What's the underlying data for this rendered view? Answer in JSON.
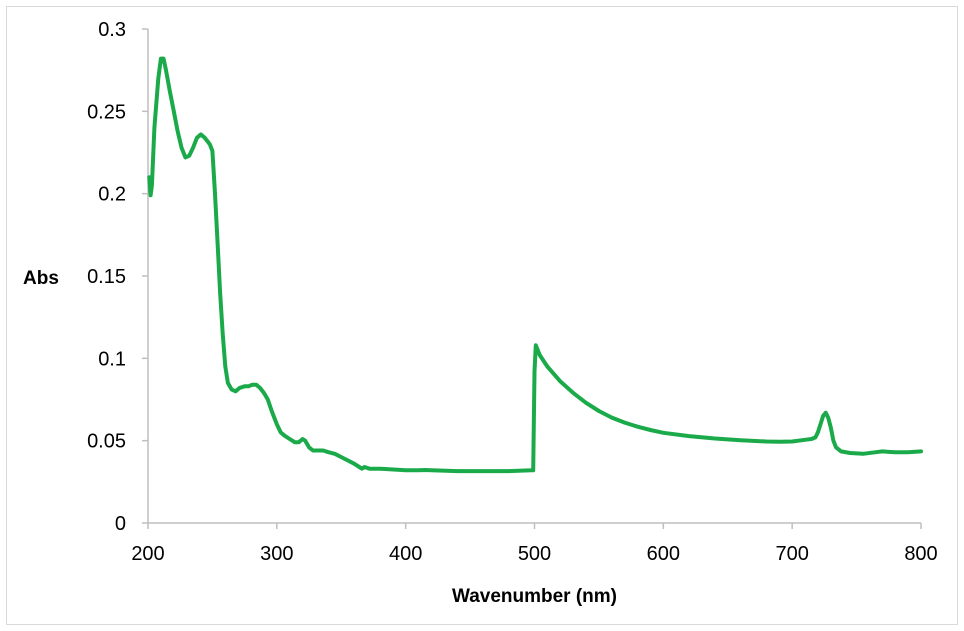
{
  "chart_data": {
    "type": "line",
    "title": "",
    "xlabel": "Wavenumber (nm)",
    "ylabel": "Abs",
    "xlim": [
      200,
      800
    ],
    "ylim": [
      0,
      0.3
    ],
    "x_ticks": [
      200,
      300,
      400,
      500,
      600,
      700,
      800
    ],
    "y_ticks": [
      0,
      0.05,
      0.1,
      0.15,
      0.2,
      0.25,
      0.3
    ],
    "x_tick_labels": [
      "200",
      "300",
      "400",
      "500",
      "600",
      "700",
      "800"
    ],
    "y_tick_labels": [
      "0",
      "0.05",
      "0.1",
      "0.15",
      "0.2",
      "0.25",
      "0.3"
    ],
    "grid": false,
    "legend": "none",
    "series": [
      {
        "color": "#1aaa4a",
        "points": [
          [
            201,
            0.21
          ],
          [
            202,
            0.199
          ],
          [
            203,
            0.205
          ],
          [
            205,
            0.24
          ],
          [
            208,
            0.27
          ],
          [
            210,
            0.282
          ],
          [
            212,
            0.282
          ],
          [
            214,
            0.275
          ],
          [
            217,
            0.262
          ],
          [
            220,
            0.25
          ],
          [
            223,
            0.238
          ],
          [
            226,
            0.228
          ],
          [
            229,
            0.222
          ],
          [
            232,
            0.223
          ],
          [
            235,
            0.228
          ],
          [
            238,
            0.234
          ],
          [
            241,
            0.236
          ],
          [
            244,
            0.234
          ],
          [
            246,
            0.232
          ],
          [
            248,
            0.23
          ],
          [
            250,
            0.226
          ],
          [
            252,
            0.2
          ],
          [
            254,
            0.17
          ],
          [
            256,
            0.14
          ],
          [
            258,
            0.115
          ],
          [
            260,
            0.095
          ],
          [
            262,
            0.085
          ],
          [
            265,
            0.081
          ],
          [
            268,
            0.08
          ],
          [
            271,
            0.082
          ],
          [
            275,
            0.083
          ],
          [
            278,
            0.083
          ],
          [
            281,
            0.084
          ],
          [
            284,
            0.084
          ],
          [
            287,
            0.082
          ],
          [
            290,
            0.079
          ],
          [
            293,
            0.075
          ],
          [
            296,
            0.068
          ],
          [
            300,
            0.06
          ],
          [
            303,
            0.055
          ],
          [
            306,
            0.053
          ],
          [
            310,
            0.051
          ],
          [
            314,
            0.049
          ],
          [
            317,
            0.049
          ],
          [
            320,
            0.051
          ],
          [
            322,
            0.05
          ],
          [
            325,
            0.046
          ],
          [
            328,
            0.044
          ],
          [
            332,
            0.044
          ],
          [
            336,
            0.044
          ],
          [
            340,
            0.043
          ],
          [
            345,
            0.042
          ],
          [
            350,
            0.04
          ],
          [
            355,
            0.038
          ],
          [
            360,
            0.036
          ],
          [
            364,
            0.034
          ],
          [
            366,
            0.033
          ],
          [
            368,
            0.034
          ],
          [
            372,
            0.033
          ],
          [
            380,
            0.033
          ],
          [
            400,
            0.032
          ],
          [
            410,
            0.032
          ],
          [
            415,
            0.0322
          ],
          [
            420,
            0.032
          ],
          [
            440,
            0.0315
          ],
          [
            460,
            0.0315
          ],
          [
            480,
            0.0315
          ],
          [
            498,
            0.032
          ],
          [
            499,
            0.032
          ],
          [
            500,
            0.092
          ],
          [
            501,
            0.108
          ],
          [
            504,
            0.102
          ],
          [
            510,
            0.095
          ],
          [
            520,
            0.086
          ],
          [
            530,
            0.079
          ],
          [
            540,
            0.073
          ],
          [
            550,
            0.068
          ],
          [
            560,
            0.064
          ],
          [
            570,
            0.061
          ],
          [
            580,
            0.0585
          ],
          [
            590,
            0.0565
          ],
          [
            600,
            0.0548
          ],
          [
            620,
            0.0528
          ],
          [
            640,
            0.0513
          ],
          [
            660,
            0.0502
          ],
          [
            680,
            0.0495
          ],
          [
            690,
            0.0493
          ],
          [
            700,
            0.0495
          ],
          [
            710,
            0.0505
          ],
          [
            715,
            0.051
          ],
          [
            718,
            0.052
          ],
          [
            720,
            0.055
          ],
          [
            722,
            0.06
          ],
          [
            724,
            0.065
          ],
          [
            726,
            0.067
          ],
          [
            728,
            0.064
          ],
          [
            730,
            0.058
          ],
          [
            732,
            0.05
          ],
          [
            734,
            0.046
          ],
          [
            738,
            0.0435
          ],
          [
            745,
            0.0425
          ],
          [
            755,
            0.042
          ],
          [
            765,
            0.043
          ],
          [
            770,
            0.0435
          ],
          [
            775,
            0.0432
          ],
          [
            780,
            0.043
          ],
          [
            790,
            0.043
          ],
          [
            800,
            0.0435
          ]
        ]
      }
    ]
  }
}
